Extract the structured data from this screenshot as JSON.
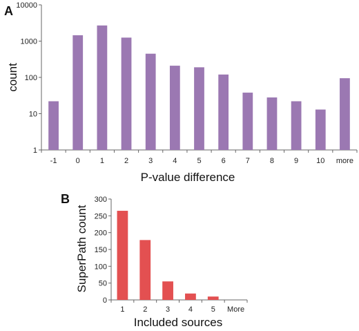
{
  "chart_data": [
    {
      "panel_label": "A",
      "type": "bar",
      "scale": "log",
      "xlabel": "P-value difference",
      "ylabel": "count",
      "ylim": [
        1,
        10000
      ],
      "yticks": [
        "1",
        "10",
        "100",
        "1000",
        "10000"
      ],
      "categories": [
        "-1",
        "0",
        "1",
        "2",
        "3",
        "4",
        "5",
        "6",
        "7",
        "8",
        "9",
        "10",
        "more"
      ],
      "values": [
        22,
        1450,
        2700,
        1250,
        450,
        210,
        190,
        120,
        38,
        28,
        22,
        13,
        95
      ],
      "color": "#9b78b2",
      "grid": false
    },
    {
      "panel_label": "B",
      "type": "bar",
      "scale": "linear",
      "xlabel": "Included sources",
      "ylabel": "SuperPath count",
      "ylim": [
        0,
        300
      ],
      "yticks": [
        "0",
        "50",
        "100",
        "150",
        "200",
        "250",
        "300"
      ],
      "categories": [
        "1",
        "2",
        "3",
        "4",
        "5",
        "More"
      ],
      "values": [
        265,
        178,
        55,
        19,
        10,
        0
      ],
      "color": "#e35051",
      "grid": false
    }
  ]
}
